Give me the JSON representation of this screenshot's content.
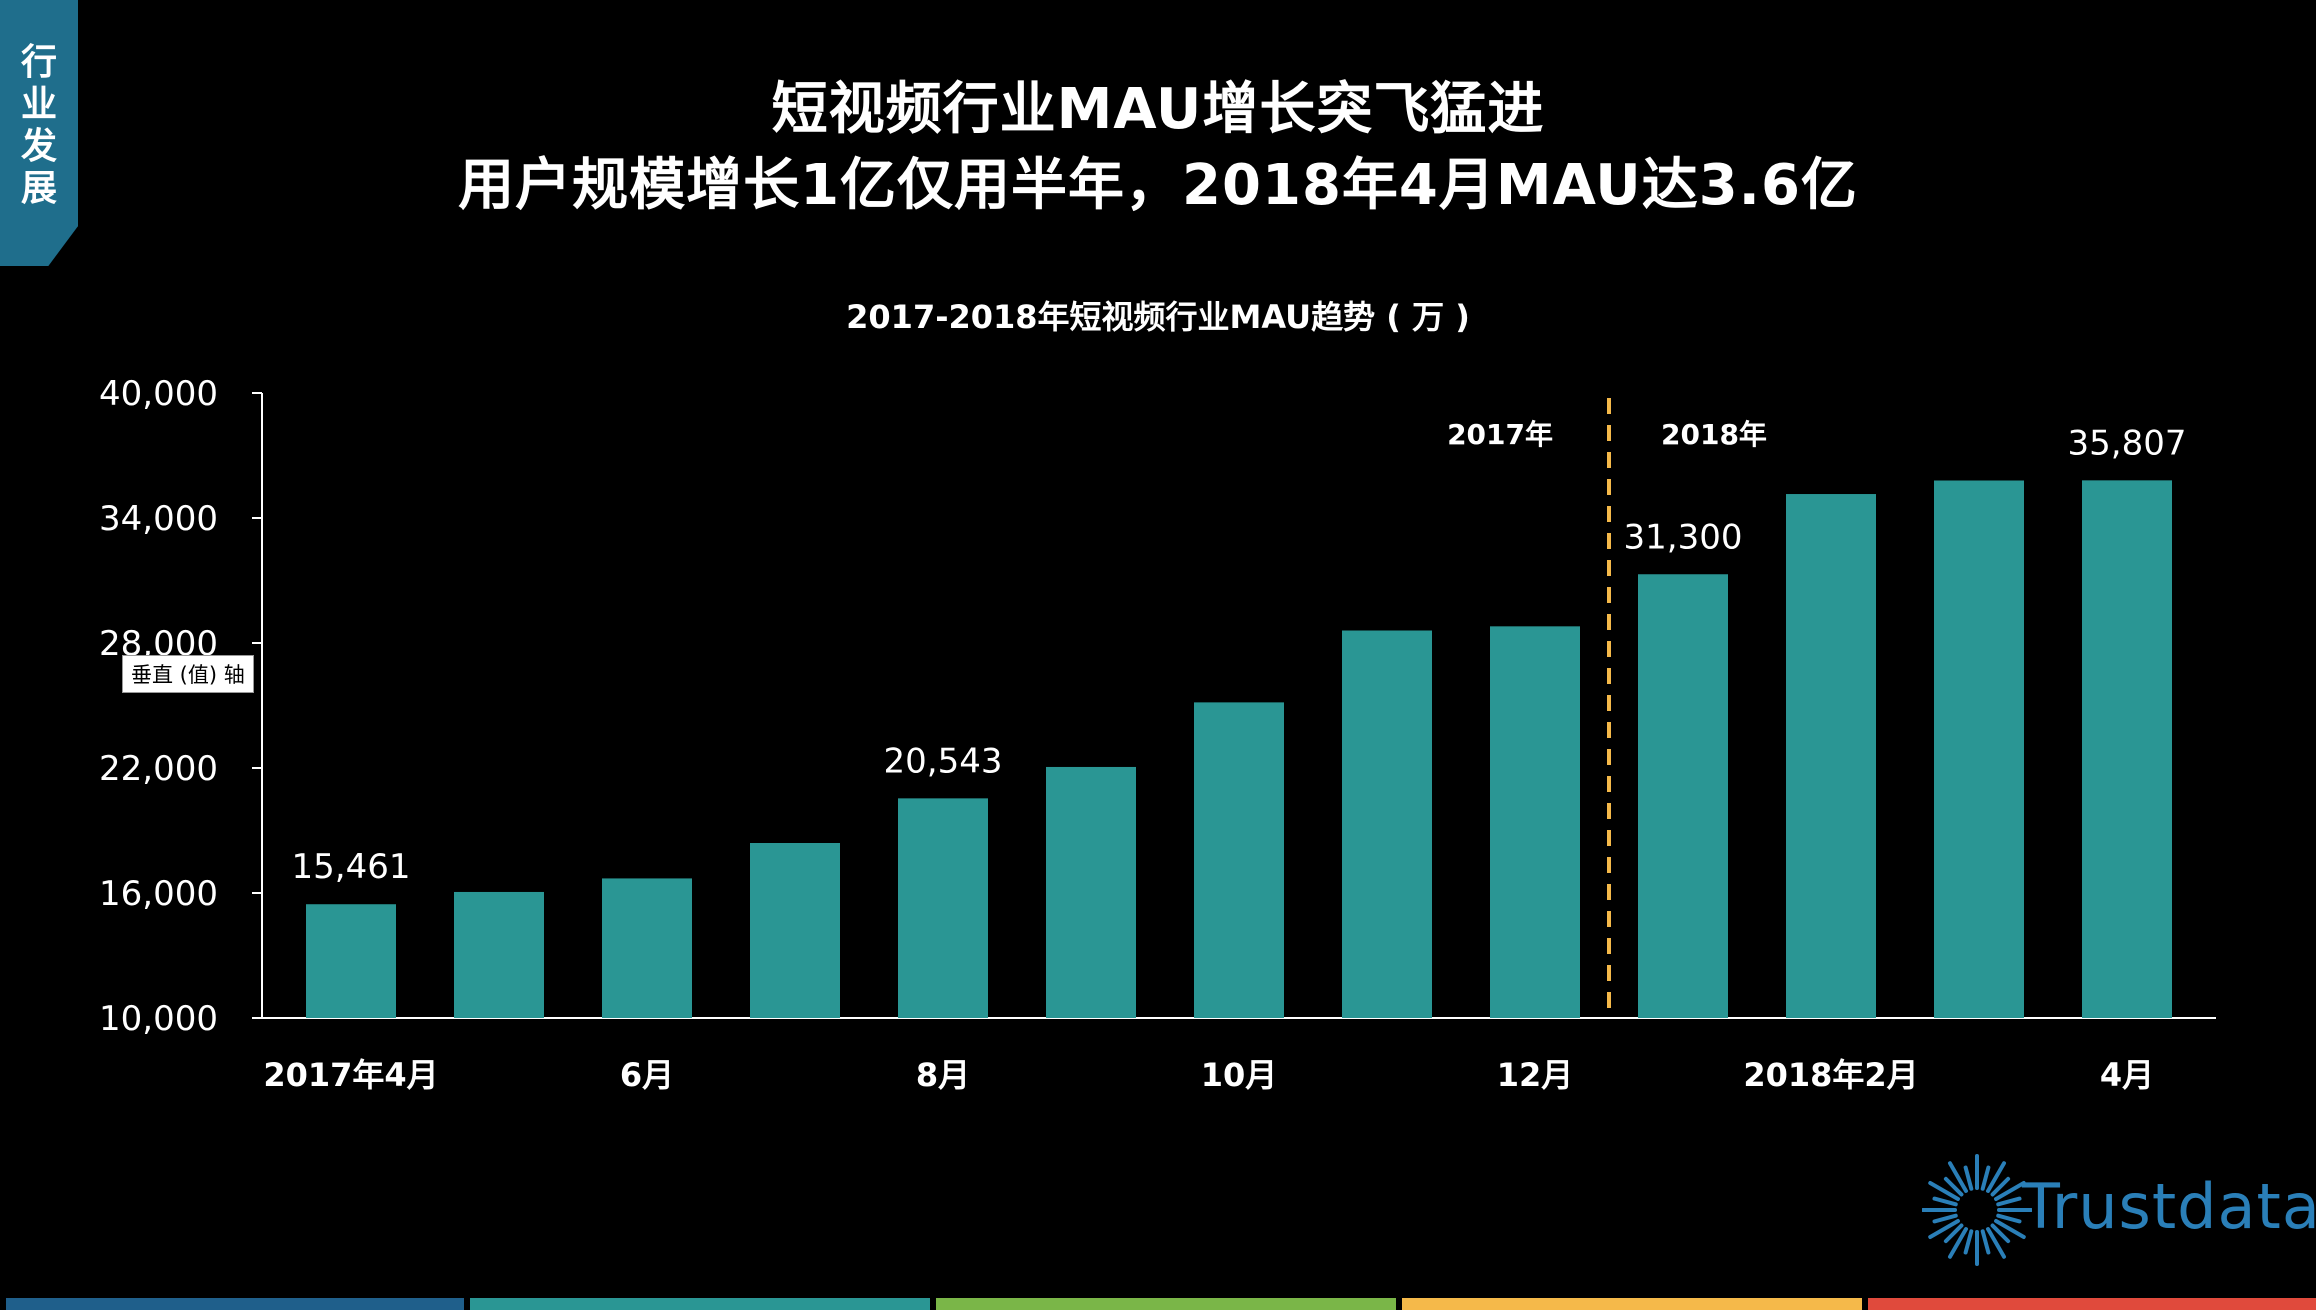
{
  "side_tab": {
    "chars": [
      "行",
      "业",
      "发",
      "展"
    ]
  },
  "title": {
    "line1": "短视频行业MAU增长突飞猛进",
    "line2": "用户规模增长1亿仅用半年，2018年4月MAU达3.6亿"
  },
  "tooltip": "垂直 (值) 轴",
  "logo": {
    "text": "Trustdata"
  },
  "colors": {
    "bar": "#2a9694",
    "divider": "#f5b94a",
    "tab": "#1f6e8c",
    "bottom": [
      "#1f5f8b",
      "#2a9694",
      "#7ab648",
      "#f5b94a",
      "#e04a3c"
    ]
  },
  "chart_data": {
    "type": "bar",
    "title": "2017-2018年短视频行业MAU趋势 ( 万 )",
    "categories": [
      "2017-04",
      "2017-05",
      "2017-06",
      "2017-07",
      "2017-08",
      "2017-09",
      "2017-10",
      "2017-11",
      "2017-12",
      "2018-01",
      "2018-02",
      "2018-03",
      "2018-04"
    ],
    "values": [
      15461,
      16050,
      16700,
      18400,
      20543,
      22050,
      25150,
      28600,
      28800,
      31300,
      35150,
      35800,
      35807
    ],
    "x_tick_labels": [
      "2017年4月",
      "",
      "6月",
      "",
      "8月",
      "",
      "10月",
      "",
      "12月",
      "",
      "2018年2月",
      "",
      "4月"
    ],
    "data_labels": [
      "15,461",
      "",
      "",
      "",
      "20,543",
      "",
      "",
      "",
      "",
      "31,300",
      "",
      "",
      "35,807"
    ],
    "y_ticks": [
      "10,000",
      "16,000",
      "22,000",
      "28,000",
      "34,000",
      "40,000"
    ],
    "ylim": [
      10000,
      40000
    ],
    "divider": {
      "after_index": 8,
      "left_label": "2017年",
      "right_label": "2018年"
    }
  }
}
